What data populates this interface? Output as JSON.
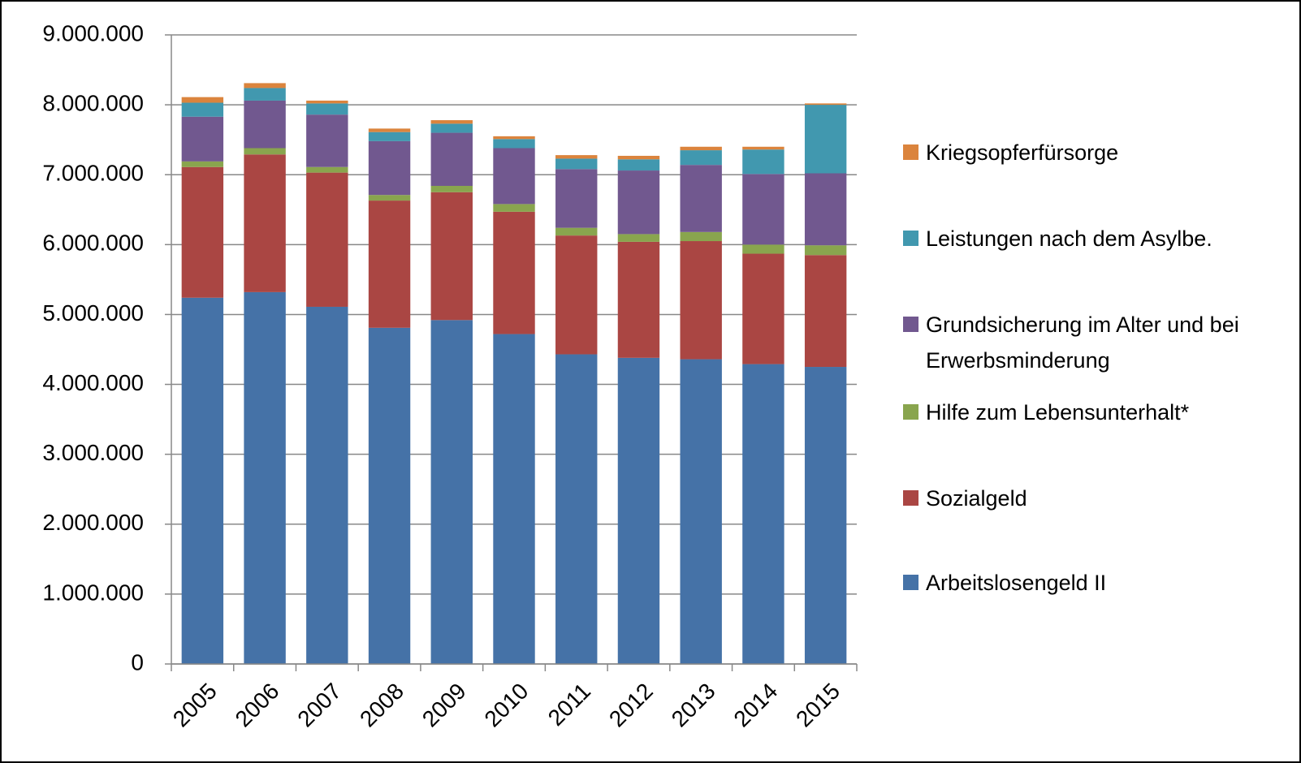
{
  "chart_data": {
    "type": "stacked_bar",
    "categories": [
      "2005",
      "2006",
      "2007",
      "2008",
      "2009",
      "2010",
      "2011",
      "2012",
      "2013",
      "2014",
      "2015"
    ],
    "series": [
      {
        "name": "Arbeitslosengeld II",
        "color": "#4572a7",
        "values": [
          5240000,
          5320000,
          5110000,
          4810000,
          4920000,
          4720000,
          4430000,
          4380000,
          4360000,
          4290000,
          4250000
        ]
      },
      {
        "name": "Sozialgeld",
        "color": "#aa4643",
        "values": [
          1870000,
          1970000,
          1920000,
          1820000,
          1830000,
          1750000,
          1700000,
          1660000,
          1690000,
          1580000,
          1600000
        ]
      },
      {
        "name": "Hilfe zum Lebensunterhalt*",
        "color": "#89a54e",
        "values": [
          80000,
          90000,
          80000,
          80000,
          90000,
          110000,
          110000,
          110000,
          130000,
          130000,
          140000
        ]
      },
      {
        "name": "Grundsicherung im Alter und bei Erwerbsminderung",
        "color": "#71588f",
        "values": [
          640000,
          680000,
          750000,
          770000,
          760000,
          800000,
          840000,
          910000,
          960000,
          1010000,
          1030000
        ]
      },
      {
        "name": "Leistungen nach dem Asylbe.",
        "color": "#4198af",
        "values": [
          200000,
          180000,
          160000,
          130000,
          130000,
          130000,
          150000,
          160000,
          210000,
          350000,
          980000
        ]
      },
      {
        "name": "Kriegsopferfürsorge",
        "color": "#db843d",
        "values": [
          80000,
          70000,
          40000,
          50000,
          50000,
          40000,
          50000,
          50000,
          50000,
          40000,
          20000
        ]
      }
    ],
    "ylim": [
      0,
      9000000
    ],
    "yticks": [
      0,
      {
        "value": 1000000,
        "label": "1.000.000"
      },
      {
        "value": 2000000,
        "label": "2.000.000"
      },
      {
        "value": 3000000,
        "label": "3.000.000"
      },
      {
        "value": 4000000,
        "label": "4.000.000"
      },
      {
        "value": 5000000,
        "label": "5.000.000"
      },
      {
        "value": 6000000,
        "label": "6.000.000"
      },
      {
        "value": 7000000,
        "label": "7.000.000"
      },
      {
        "value": 8000000,
        "label": "8.000.000"
      },
      {
        "value": 9000000,
        "label": "9.000.000"
      }
    ],
    "grid": true,
    "legend": "right"
  }
}
